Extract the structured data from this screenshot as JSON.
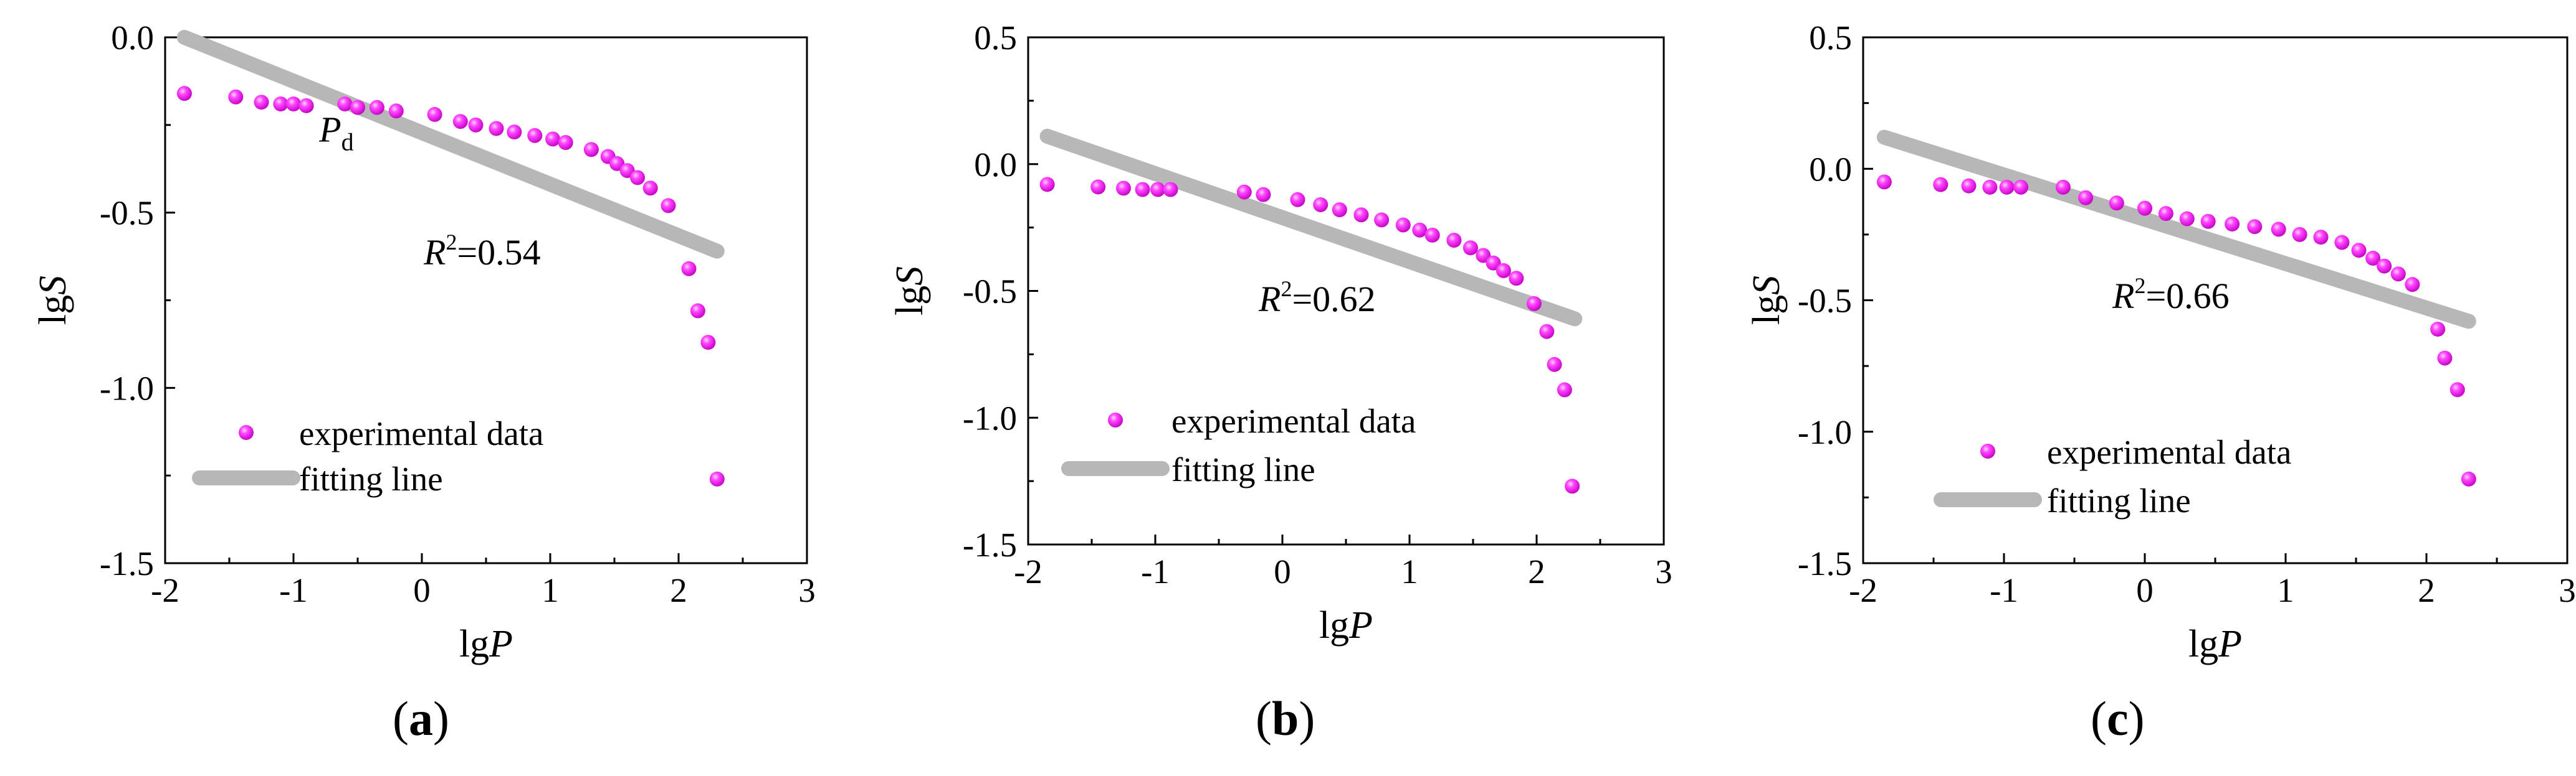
{
  "colors": {
    "points": "#ee11ee",
    "point_highlight": "#ffb3ff",
    "fit": "#b7b7b7",
    "axis": "#000000"
  },
  "legend": {
    "data_label": "experimental data",
    "fit_label": "fitting line"
  },
  "chart_data": [
    {
      "type": "scatter",
      "panel": "a",
      "xlabel": "lgP",
      "ylabel": "lgS",
      "xlim": [
        -2,
        3
      ],
      "ylim": [
        -1.5,
        0.0
      ],
      "xticks": [
        "-2",
        "-1",
        "0",
        "1",
        "2",
        "3"
      ],
      "yticks": [
        "-1.5",
        "-1.0",
        "-0.5",
        "0.0"
      ],
      "annotations": {
        "r2": "=0.54",
        "point_label": "P",
        "point_label_sub": "d",
        "point_label_x": -0.8,
        "point_label_y": -0.2
      },
      "fit_line": {
        "x": [
          -1.85,
          2.3
        ],
        "y": [
          0.0,
          -0.61
        ]
      },
      "series": [
        {
          "name": "experimental data",
          "x": [
            -1.85,
            -1.45,
            -1.25,
            -1.1,
            -1.0,
            -0.9,
            -0.6,
            -0.5,
            -0.35,
            -0.2,
            0.1,
            0.3,
            0.42,
            0.58,
            0.72,
            0.88,
            1.02,
            1.12,
            1.32,
            1.45,
            1.52,
            1.6,
            1.68,
            1.78,
            1.92,
            2.08,
            2.15,
            2.23,
            2.3
          ],
          "y": [
            -0.16,
            -0.17,
            -0.185,
            -0.19,
            -0.19,
            -0.195,
            -0.19,
            -0.2,
            -0.2,
            -0.21,
            -0.22,
            -0.24,
            -0.25,
            -0.26,
            -0.27,
            -0.28,
            -0.29,
            -0.3,
            -0.32,
            -0.34,
            -0.36,
            -0.38,
            -0.4,
            -0.43,
            -0.48,
            -0.66,
            -0.78,
            -0.87,
            -1.26
          ]
        }
      ]
    },
    {
      "type": "scatter",
      "panel": "b",
      "xlabel": "lgP",
      "ylabel": "lgS",
      "xlim": [
        -2,
        3
      ],
      "ylim": [
        -1.5,
        0.5
      ],
      "xticks": [
        "-2",
        "-1",
        "0",
        "1",
        "2",
        "3"
      ],
      "yticks": [
        "-1.5",
        "-1.0",
        "-0.5",
        "0.0",
        "0.5"
      ],
      "annotations": {
        "r2": "=0.62"
      },
      "fit_line": {
        "x": [
          -1.85,
          2.3
        ],
        "y": [
          0.11,
          -0.61
        ]
      },
      "series": [
        {
          "name": "experimental data",
          "x": [
            -1.85,
            -1.45,
            -1.25,
            -1.1,
            -0.98,
            -0.88,
            -0.3,
            -0.15,
            0.12,
            0.3,
            0.45,
            0.62,
            0.78,
            0.95,
            1.08,
            1.18,
            1.35,
            1.48,
            1.58,
            1.66,
            1.74,
            1.84,
            1.98,
            2.08,
            2.14,
            2.22,
            2.28
          ],
          "y": [
            -0.08,
            -0.09,
            -0.095,
            -0.1,
            -0.1,
            -0.1,
            -0.11,
            -0.12,
            -0.14,
            -0.16,
            -0.18,
            -0.2,
            -0.22,
            -0.24,
            -0.26,
            -0.28,
            -0.3,
            -0.33,
            -0.36,
            -0.39,
            -0.42,
            -0.45,
            -0.55,
            -0.66,
            -0.79,
            -0.89,
            -1.27
          ]
        }
      ]
    },
    {
      "type": "scatter",
      "panel": "c",
      "xlabel": "lgP",
      "ylabel": "lgS",
      "xlim": [
        -2,
        3
      ],
      "ylim": [
        -1.5,
        0.5
      ],
      "xticks": [
        "-2",
        "-1",
        "0",
        "1",
        "2",
        "3"
      ],
      "yticks": [
        "-1.5",
        "-1.0",
        "-0.5",
        "0.0",
        "0.5"
      ],
      "annotations": {
        "r2": "=0.66"
      },
      "fit_line": {
        "x": [
          -1.85,
          2.3
        ],
        "y": [
          0.12,
          -0.58
        ]
      },
      "series": [
        {
          "name": "experimental data",
          "x": [
            -1.85,
            -1.45,
            -1.25,
            -1.1,
            -0.98,
            -0.88,
            -0.58,
            -0.42,
            -0.2,
            0.0,
            0.15,
            0.3,
            0.45,
            0.62,
            0.78,
            0.95,
            1.1,
            1.25,
            1.4,
            1.52,
            1.62,
            1.7,
            1.8,
            1.9,
            2.08,
            2.13,
            2.22,
            2.3
          ],
          "y": [
            -0.05,
            -0.06,
            -0.065,
            -0.07,
            -0.07,
            -0.07,
            -0.07,
            -0.11,
            -0.13,
            -0.15,
            -0.17,
            -0.19,
            -0.2,
            -0.21,
            -0.22,
            -0.23,
            -0.25,
            -0.26,
            -0.28,
            -0.31,
            -0.34,
            -0.37,
            -0.4,
            -0.44,
            -0.61,
            -0.72,
            -0.84,
            -1.18
          ]
        }
      ]
    }
  ]
}
